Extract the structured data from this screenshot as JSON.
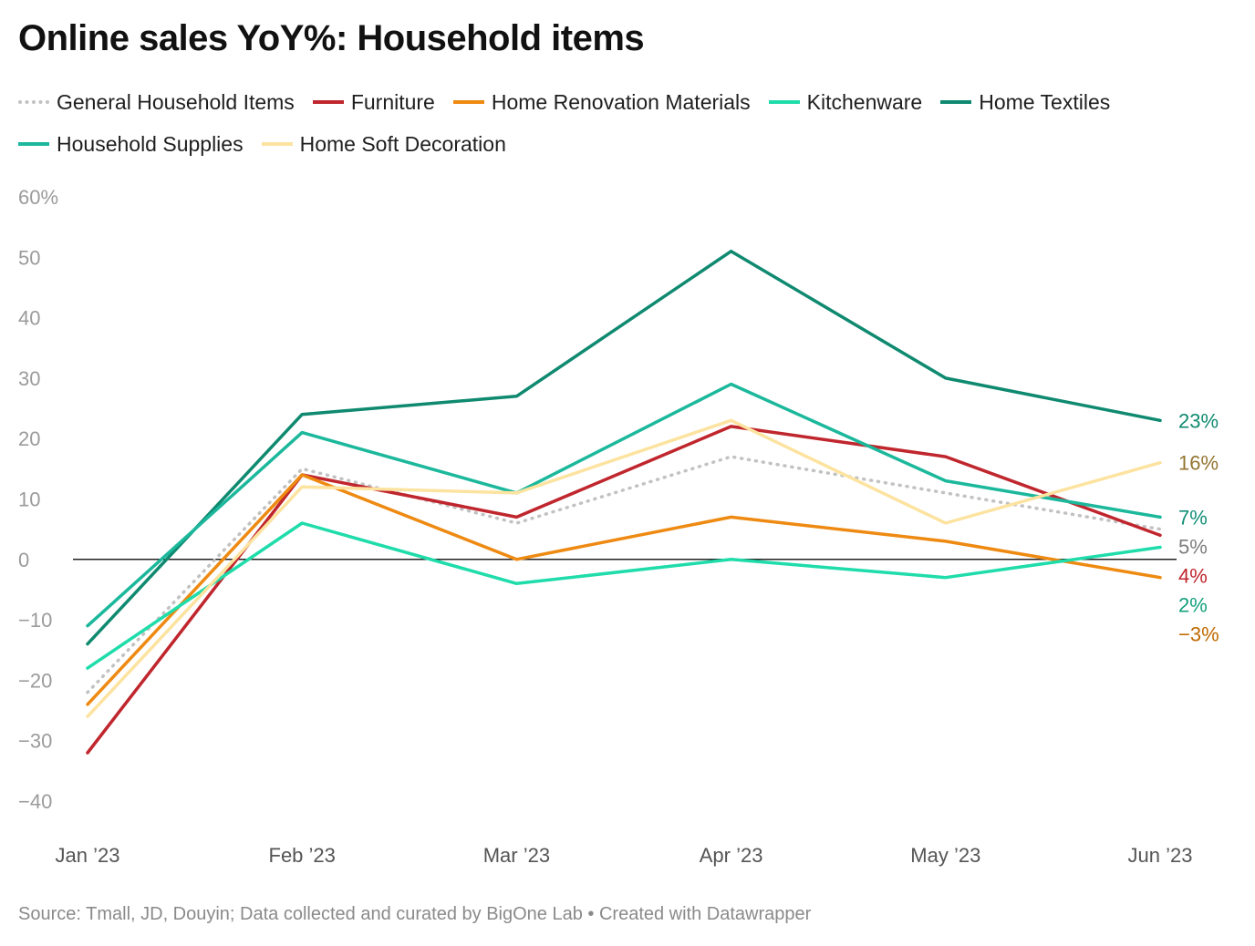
{
  "title": "Online sales YoY%: Household items",
  "source": "Source: Tmall, JD, Douyin; Data collected and curated by BigOne Lab • Created with Datawrapper",
  "chart_data": {
    "type": "line",
    "title": "Online sales YoY%: Household items",
    "xlabel": "",
    "ylabel": "",
    "x": [
      "Jan ’23",
      "Feb ’23",
      "Mar ’23",
      "Apr ’23",
      "May ’23",
      "Jun ’23"
    ],
    "ylim": [
      -40,
      60
    ],
    "yticks": [
      {
        "value": 60,
        "label": "60%"
      },
      {
        "value": 50,
        "label": "50"
      },
      {
        "value": 40,
        "label": "40"
      },
      {
        "value": 30,
        "label": "30"
      },
      {
        "value": 20,
        "label": "20"
      },
      {
        "value": 10,
        "label": "10"
      },
      {
        "value": 0,
        "label": "0"
      },
      {
        "value": -10,
        "label": "−10"
      },
      {
        "value": -20,
        "label": "−20"
      },
      {
        "value": -30,
        "label": "−30"
      },
      {
        "value": -40,
        "label": "−40"
      }
    ],
    "grid": false,
    "zero_line": true,
    "legend_position": "top-left",
    "series": [
      {
        "name": "General Household Items",
        "color": "#c2c2c2",
        "dash": "dotted",
        "values": [
          -22,
          15,
          6,
          17,
          11,
          5
        ],
        "end_label": "5%",
        "end_label_color": "#7d7d7d"
      },
      {
        "name": "Furniture",
        "color": "#c0262d",
        "dash": "solid",
        "values": [
          -32,
          14,
          7,
          22,
          17,
          4
        ],
        "end_label": "4%",
        "end_label_color": "#c0262d"
      },
      {
        "name": "Home Renovation Materials",
        "color": "#ee8a12",
        "dash": "solid",
        "values": [
          -24,
          14,
          0,
          7,
          3,
          -3
        ],
        "end_label": "−3%",
        "end_label_color": "#bf6a00"
      },
      {
        "name": "Kitchenware",
        "color": "#1fdcaa",
        "dash": "solid",
        "values": [
          -18,
          6,
          -4,
          0,
          -3,
          2
        ],
        "end_label": "2%",
        "end_label_color": "#14a07c"
      },
      {
        "name": "Home Textiles",
        "color": "#0f8a70",
        "dash": "solid",
        "values": [
          -14,
          24,
          27,
          51,
          30,
          23
        ],
        "end_label": "23%",
        "end_label_color": "#0f8a70"
      },
      {
        "name": "Household Supplies",
        "color": "#1cb89c",
        "dash": "solid",
        "values": [
          -11,
          21,
          11,
          29,
          13,
          7
        ],
        "end_label": "7%",
        "end_label_color": "#138f78"
      },
      {
        "name": "Home Soft Decoration",
        "color": "#fde3a0",
        "dash": "solid",
        "values": [
          -26,
          12,
          11,
          23,
          6,
          16
        ],
        "end_label": "16%",
        "end_label_color": "#937431"
      }
    ]
  }
}
